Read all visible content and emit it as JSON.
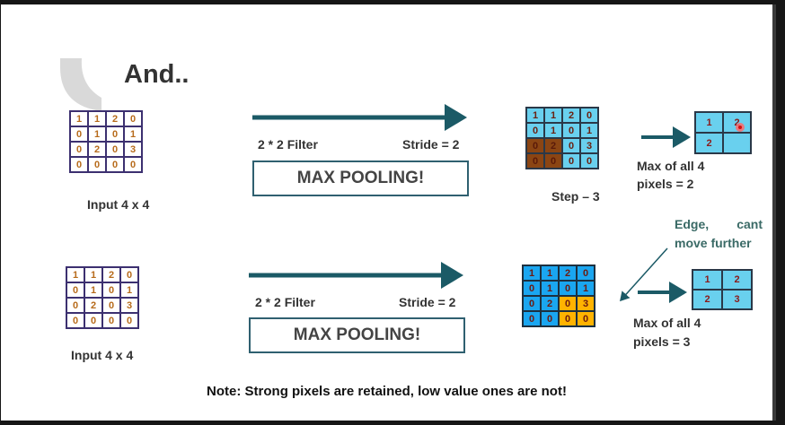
{
  "title": "And..",
  "top_row": {
    "input_grid": [
      [
        "1",
        "1",
        "2",
        "0"
      ],
      [
        "0",
        "1",
        "0",
        "1"
      ],
      [
        "0",
        "2",
        "0",
        "3"
      ],
      [
        "0",
        "0",
        "0",
        "0"
      ]
    ],
    "input_label": "Input 4 x 4",
    "filter_label": "2 * 2 Filter",
    "stride_label": "Stride = 2",
    "operation": "MAX POOLING!",
    "step_grid": [
      [
        "1",
        "1",
        "2",
        "0"
      ],
      [
        "0",
        "1",
        "0",
        "1"
      ],
      [
        "0",
        "2",
        "0",
        "3"
      ],
      [
        "0",
        "0",
        "0",
        "0"
      ]
    ],
    "step_label": "Step – 3",
    "output_grid": [
      [
        "1",
        "2"
      ],
      [
        "2",
        ""
      ]
    ],
    "caption": [
      "Max  of  all  4",
      "pixels = 2"
    ]
  },
  "bottom_row": {
    "input_grid": [
      [
        "1",
        "1",
        "2",
        "0"
      ],
      [
        "0",
        "1",
        "0",
        "1"
      ],
      [
        "0",
        "2",
        "0",
        "3"
      ],
      [
        "0",
        "0",
        "0",
        "0"
      ]
    ],
    "input_label": "Input 4 x 4",
    "filter_label": "2 * 2 Filter",
    "stride_label": "Stride = 2",
    "operation": "MAX POOLING!",
    "step_grid": [
      [
        "1",
        "1",
        "2",
        "0"
      ],
      [
        "0",
        "1",
        "0",
        "1"
      ],
      [
        "0",
        "2",
        "0",
        "3"
      ],
      [
        "0",
        "0",
        "0",
        "0"
      ]
    ],
    "edge_note": [
      "Edge,        cant",
      "move further"
    ],
    "output_grid": [
      [
        "1",
        "2"
      ],
      [
        "2",
        "3"
      ]
    ],
    "caption": [
      "Max  of  all  4",
      "pixels = 3"
    ]
  },
  "footer_note": "Note: Strong pixels are retained, low value ones are not!",
  "colors": {
    "arrow": "#1b5a66",
    "highlight_brown": "#8b4513",
    "highlight_orange": "#ffb300",
    "cell_cyan": "#69d0ee",
    "cell_blue": "#1aa6f0"
  },
  "icons": {
    "cursor": "red-dot-cursor-icon"
  }
}
